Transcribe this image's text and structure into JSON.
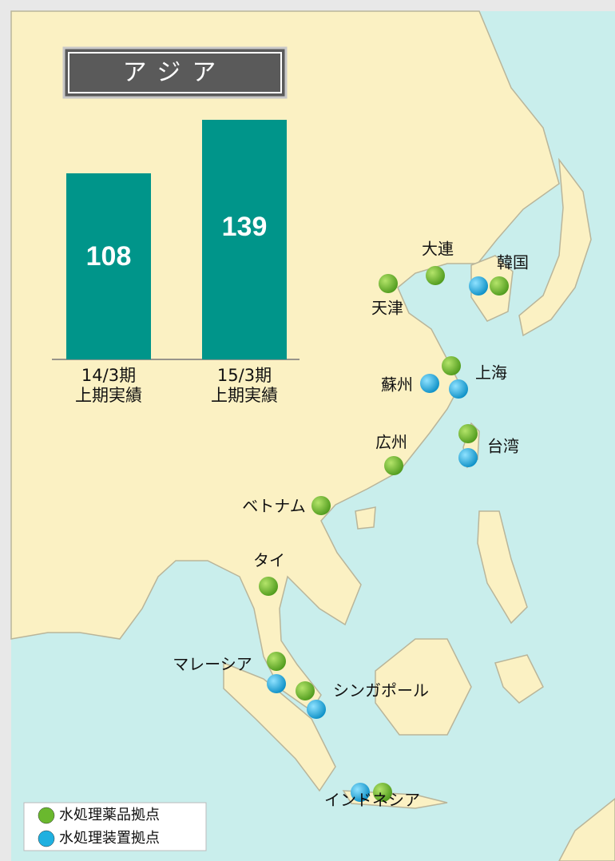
{
  "title": "アジア",
  "chart_data": {
    "type": "bar",
    "categories": [
      "14/3期\n上期実績",
      "15/3期\n上期実績"
    ],
    "values": [
      108,
      139
    ],
    "color": "#00958a"
  },
  "map": {
    "locations": [
      "天津",
      "大連",
      "韓国",
      "上海",
      "蘇州",
      "台湾",
      "広州",
      "ベトナム",
      "タイ",
      "マレーシア",
      "シンガポール",
      "インドネシア"
    ],
    "legend": [
      {
        "label": "水処理薬品拠点",
        "color": "#6ab82e"
      },
      {
        "label": "水処理装置拠点",
        "color": "#1fb0e0"
      }
    ]
  }
}
